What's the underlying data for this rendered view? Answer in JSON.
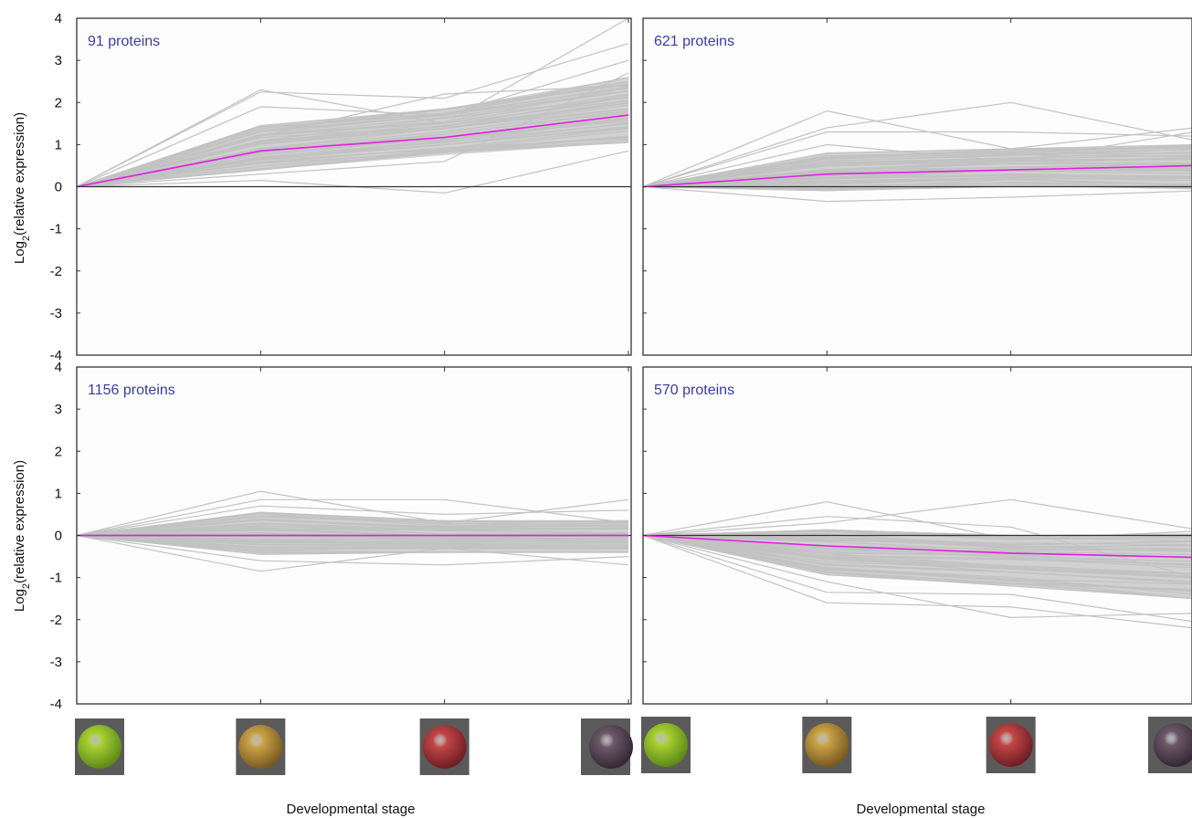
{
  "colors": {
    "background": "#ffffff",
    "plot_background": "#fdfdfd",
    "frame": "#333333",
    "profiles": "#c2c2c2",
    "mean_profile": "#e020e0",
    "zero_line": "#333333",
    "panel_label": "#3a3aa6"
  },
  "chart_data": [
    {
      "type": "line",
      "panel": "top-left",
      "annotation": "91 proteins",
      "ylabel": "Log2(relative expression)",
      "xlabel": "",
      "ylim": [
        -4,
        4
      ],
      "yticks": [
        -4,
        -3,
        -2,
        -1,
        0,
        1,
        2,
        3,
        4
      ],
      "x": [
        1,
        2,
        3,
        4
      ],
      "mean": [
        0,
        0.85,
        1.17,
        1.7
      ],
      "envelope": {
        "high": [
          0,
          1.45,
          1.85,
          2.6
        ],
        "low": [
          0,
          0.4,
          0.75,
          1.05
        ]
      },
      "outliers": [
        [
          0,
          2.3,
          1.5,
          4.0
        ],
        [
          0,
          2.25,
          2.1,
          3.4
        ],
        [
          0,
          1.9,
          1.7,
          3.0
        ],
        [
          0,
          0.15,
          -0.15,
          0.85
        ],
        [
          0,
          0.3,
          0.6,
          2.7
        ],
        [
          0,
          1.2,
          2.2,
          2.4
        ]
      ]
    },
    {
      "type": "line",
      "panel": "top-right",
      "annotation": "621 proteins",
      "ylabel": "",
      "xlabel": "Developmental stage",
      "ylim": [
        -4,
        4
      ],
      "x": [
        1,
        2,
        3,
        4
      ],
      "mean": [
        0,
        0.3,
        0.4,
        0.5
      ],
      "envelope": {
        "high": [
          0,
          0.8,
          0.9,
          1.0
        ],
        "low": [
          0,
          -0.1,
          0.0,
          -0.05
        ]
      },
      "outliers": [
        [
          0,
          1.8,
          0.9,
          1.4
        ],
        [
          0,
          1.4,
          2.0,
          1.1
        ],
        [
          0,
          1.3,
          1.3,
          1.2
        ],
        [
          0,
          -0.35,
          -0.25,
          -0.1
        ],
        [
          0,
          1.0,
          0.6,
          1.3
        ]
      ]
    },
    {
      "type": "line",
      "panel": "bottom-left",
      "annotation": "1156 proteins",
      "ylabel": "Log2(relative expression)",
      "xlabel": "Developmental stage",
      "ylim": [
        -4,
        4
      ],
      "yticks": [
        -4,
        -3,
        -2,
        -1,
        0,
        1,
        2,
        3,
        4
      ],
      "x": [
        1,
        2,
        3,
        4
      ],
      "mean": [
        0,
        0.0,
        0.0,
        0.0
      ],
      "envelope": {
        "high": [
          0,
          0.55,
          0.35,
          0.35
        ],
        "low": [
          0,
          -0.45,
          -0.4,
          -0.4
        ]
      },
      "outliers": [
        [
          0,
          1.05,
          0.3,
          0.85
        ],
        [
          0,
          0.85,
          0.85,
          0.3
        ],
        [
          0,
          -0.85,
          -0.3,
          -0.7
        ],
        [
          0,
          -0.6,
          -0.7,
          -0.5
        ],
        [
          0,
          0.7,
          0.5,
          0.6
        ]
      ]
    },
    {
      "type": "line",
      "panel": "bottom-right",
      "annotation": "570 proteins",
      "ylabel": "",
      "xlabel": "",
      "ylim": [
        -4,
        4
      ],
      "x": [
        1,
        2,
        3,
        4
      ],
      "mean": [
        0,
        -0.25,
        -0.42,
        -0.52
      ],
      "envelope": {
        "high": [
          0,
          0.15,
          0.0,
          0.05
        ],
        "low": [
          0,
          -0.95,
          -1.2,
          -1.5
        ]
      },
      "outliers": [
        [
          0,
          0.8,
          -0.1,
          0.1
        ],
        [
          0,
          0.3,
          0.85,
          0.15
        ],
        [
          0,
          -1.6,
          -1.7,
          -2.2
        ],
        [
          0,
          -1.1,
          -1.95,
          -1.85
        ],
        [
          0,
          -1.35,
          -1.4,
          -2.05
        ],
        [
          0,
          0.45,
          0.2,
          -1.0
        ]
      ]
    }
  ],
  "stages": [
    {
      "name": "green-berry-icon",
      "fill": "#a7d032",
      "shade": "#5e8a18"
    },
    {
      "name": "veraison-berry-icon",
      "fill": "#c9a346",
      "shade": "#7c5a22"
    },
    {
      "name": "red-berry-icon",
      "fill": "#c24646",
      "shade": "#6e1e24"
    },
    {
      "name": "ripe-berry-icon",
      "fill": "#6c5868",
      "shade": "#342834"
    }
  ]
}
